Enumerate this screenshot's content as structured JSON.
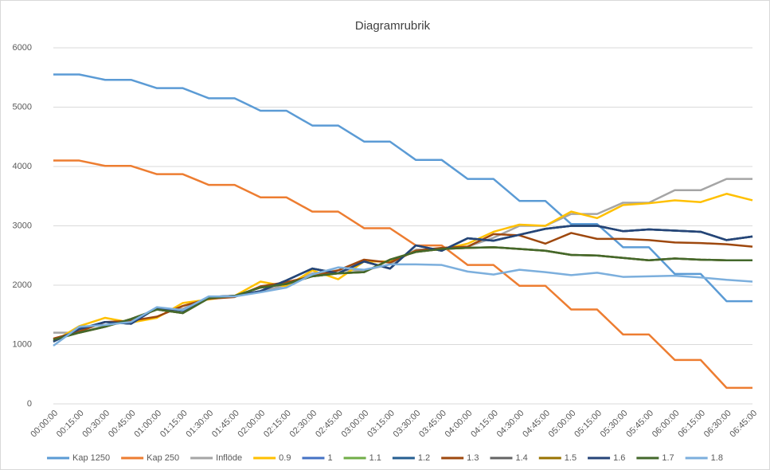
{
  "chart_data": {
    "type": "line",
    "title": "Diagramrubrik",
    "categories": [
      "00:00:00",
      "00:15:00",
      "00:30:00",
      "00:45:00",
      "01:00:00",
      "01:15:00",
      "01:30:00",
      "01:45:00",
      "02:00:00",
      "02:15:00",
      "02:30:00",
      "02:45:00",
      "03:00:00",
      "03:15:00",
      "03:30:00",
      "03:45:00",
      "04:00:00",
      "04:15:00",
      "04:30:00",
      "04:45:00",
      "05:00:00",
      "05:15:00",
      "05:30:00",
      "05:45:00",
      "06:00:00",
      "06:15:00",
      "06:30:00",
      "06:45:00"
    ],
    "series": [
      {
        "name": "Kap 1250",
        "color": "#5b9bd5",
        "values": [
          5550,
          5550,
          5460,
          5460,
          5320,
          5320,
          5150,
          5150,
          4940,
          4940,
          4690,
          4690,
          4420,
          4420,
          4110,
          4110,
          3790,
          3790,
          3420,
          3420,
          3030,
          3030,
          2640,
          2640,
          2190,
          2190,
          1730,
          1730
        ]
      },
      {
        "name": "Kap 250",
        "color": "#ed7d31",
        "values": [
          4100,
          4100,
          4010,
          4010,
          3870,
          3870,
          3690,
          3690,
          3480,
          3480,
          3240,
          3240,
          2960,
          2960,
          2670,
          2670,
          2340,
          2340,
          1990,
          1990,
          1590,
          1590,
          1170,
          1170,
          740,
          740,
          270,
          270
        ]
      },
      {
        "name": "Inflöde",
        "color": "#a5a5a5",
        "values": [
          1200,
          1200,
          1310,
          1400,
          1600,
          1600,
          1800,
          1810,
          1900,
          2000,
          2200,
          2250,
          2250,
          2350,
          2600,
          2600,
          2650,
          2800,
          3000,
          3000,
          3200,
          3200,
          3390,
          3390,
          3600,
          3600,
          3790,
          3790
        ]
      },
      {
        "name": "0.9",
        "color": "#ffc000",
        "values": [
          1050,
          1310,
          1450,
          1370,
          1450,
          1700,
          1760,
          1820,
          2060,
          1980,
          2250,
          2100,
          2400,
          2400,
          2580,
          2600,
          2700,
          2900,
          3020,
          3000,
          3240,
          3130,
          3350,
          3380,
          3430,
          3400,
          3540,
          3430
        ]
      },
      {
        "name": "1",
        "color": "#4472c4",
        "values": [
          1050,
          1260,
          1380,
          1350,
          1620,
          1570,
          1800,
          1820,
          1900,
          2080,
          2280,
          2200,
          2400,
          2280,
          2670,
          2580,
          2790,
          2750,
          2850,
          2950,
          3000,
          3000,
          2910,
          2940,
          2920,
          2900,
          2760,
          2820
        ]
      },
      {
        "name": "1.1",
        "color": "#70ad47",
        "values": [
          1050,
          1260,
          1380,
          1350,
          1620,
          1570,
          1800,
          1820,
          1900,
          2080,
          2280,
          2200,
          2400,
          2280,
          2670,
          2580,
          2790,
          2750,
          2850,
          2950,
          3000,
          3000,
          2910,
          2940,
          2920,
          2900,
          2760,
          2820
        ]
      },
      {
        "name": "1.2",
        "color": "#255e91",
        "values": [
          1050,
          1260,
          1380,
          1350,
          1620,
          1570,
          1800,
          1820,
          1900,
          2080,
          2280,
          2200,
          2400,
          2280,
          2670,
          2580,
          2790,
          2750,
          2850,
          2950,
          3000,
          3000,
          2910,
          2940,
          2920,
          2900,
          2760,
          2820
        ]
      },
      {
        "name": "1.3",
        "color": "#9e480e",
        "values": [
          1100,
          1220,
          1380,
          1400,
          1470,
          1650,
          1770,
          1800,
          1980,
          2050,
          2150,
          2250,
          2430,
          2380,
          2580,
          2630,
          2650,
          2860,
          2840,
          2700,
          2880,
          2780,
          2780,
          2760,
          2720,
          2710,
          2690,
          2650
        ]
      },
      {
        "name": "1.4",
        "color": "#636363",
        "values": [
          1080,
          1200,
          1300,
          1430,
          1590,
          1530,
          1780,
          1820,
          1960,
          2020,
          2150,
          2200,
          2220,
          2430,
          2560,
          2610,
          2630,
          2640,
          2610,
          2580,
          2510,
          2500,
          2460,
          2420,
          2450,
          2430,
          2420,
          2420
        ]
      },
      {
        "name": "1.5",
        "color": "#997300",
        "values": [
          1080,
          1200,
          1300,
          1430,
          1590,
          1530,
          1780,
          1820,
          1960,
          2020,
          2150,
          2200,
          2220,
          2430,
          2560,
          2610,
          2630,
          2640,
          2610,
          2580,
          2510,
          2500,
          2460,
          2420,
          2450,
          2430,
          2420,
          2420
        ]
      },
      {
        "name": "1.6",
        "color": "#264478",
        "values": [
          1050,
          1260,
          1380,
          1350,
          1620,
          1570,
          1800,
          1820,
          1900,
          2080,
          2280,
          2200,
          2400,
          2280,
          2670,
          2580,
          2790,
          2750,
          2850,
          2950,
          3000,
          3000,
          2910,
          2940,
          2920,
          2900,
          2760,
          2820
        ]
      },
      {
        "name": "1.7",
        "color": "#43682b",
        "values": [
          1080,
          1200,
          1300,
          1430,
          1590,
          1530,
          1780,
          1820,
          1960,
          2020,
          2150,
          2200,
          2220,
          2430,
          2560,
          2610,
          2630,
          2640,
          2610,
          2580,
          2510,
          2500,
          2460,
          2420,
          2450,
          2430,
          2420,
          2420
        ]
      },
      {
        "name": "1.8",
        "color": "#7cafdd",
        "values": [
          980,
          1300,
          1330,
          1380,
          1630,
          1580,
          1810,
          1810,
          1880,
          1960,
          2180,
          2300,
          2260,
          2350,
          2350,
          2340,
          2230,
          2180,
          2260,
          2220,
          2170,
          2210,
          2140,
          2150,
          2160,
          2130,
          2090,
          2060
        ]
      }
    ],
    "ylim": [
      0,
      6000
    ],
    "yticks": [
      0,
      1000,
      2000,
      3000,
      4000,
      5000,
      6000
    ],
    "grid": true,
    "legend": "bottom"
  }
}
